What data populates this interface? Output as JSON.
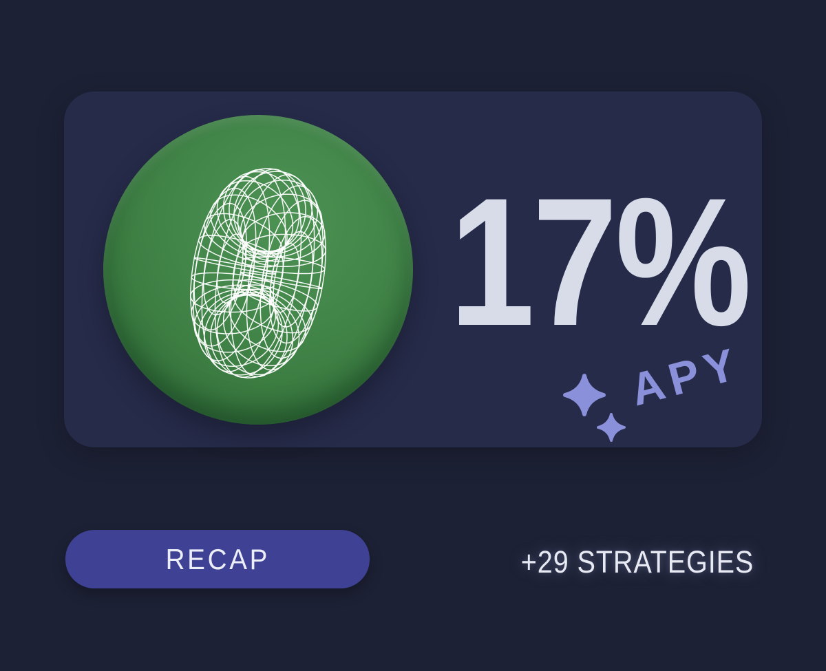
{
  "card": {
    "apy_value": "17%",
    "apy_label": "APY",
    "logo": {
      "icon": "wireframe-torus-icon",
      "bg_color": "#3f8147",
      "wireframe_color": "#ffffff"
    },
    "sparkles": {
      "large_icon": "sparkle-icon",
      "small_icon": "sparkle-icon",
      "color": "#8a90da"
    }
  },
  "footer": {
    "recap_button_label": "RECAP",
    "strategies_label": "+29 STRATEGIES"
  },
  "colors": {
    "page_background": "#1d2135",
    "card_background": "#262b4a",
    "button_purple": "#3f4294",
    "periwinkle_accent": "#8a90da",
    "value_text": "#d8dbe8",
    "light_text": "#e7e9f3",
    "logo_green": "#3f8147"
  }
}
